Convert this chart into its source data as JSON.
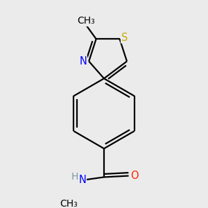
{
  "background_color": "#ebebeb",
  "atom_colors": {
    "C": "#000000",
    "N": "#0000ff",
    "O": "#ff2200",
    "S": "#ccaa00",
    "H": "#7a9a9a"
  },
  "line_color": "#000000",
  "line_width": 1.6,
  "font_size": 10.5
}
